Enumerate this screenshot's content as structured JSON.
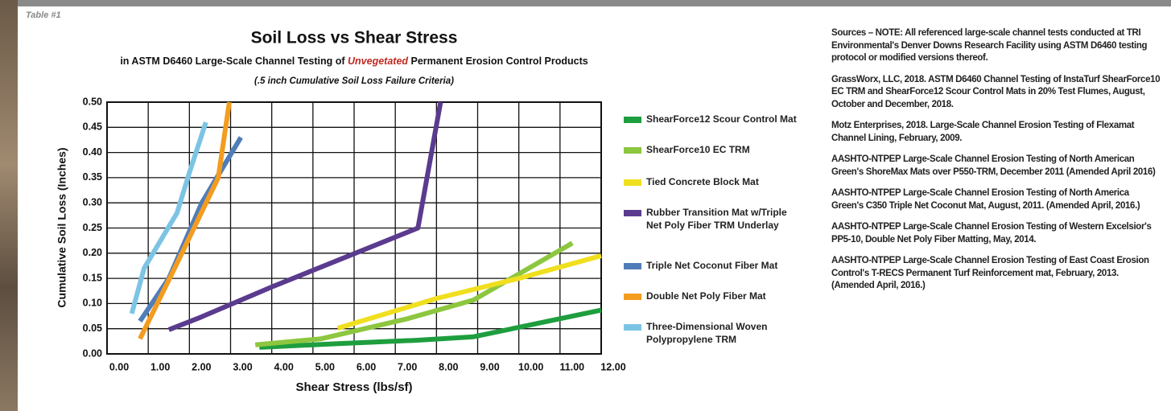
{
  "table_label": "Table #1",
  "chart_data": {
    "type": "line",
    "title": "Soil Loss vs Shear Stress",
    "subtitle": [
      "in ASTM D6460 Large-Scale Channel Testing of ",
      "Unvegetated",
      " Permanent Erosion Control Products"
    ],
    "note": "(.5 inch Cumulative Soil Loss Failure Criteria)",
    "xlabel": "Shear Stress (lbs/sf)",
    "ylabel": "Cumulative Soil Loss (Inches)",
    "xlim": [
      0,
      12
    ],
    "ylim": [
      0,
      0.5
    ],
    "xticks": [
      {
        "value": 0,
        "label": "0.00"
      },
      {
        "value": 1,
        "label": "1.00"
      },
      {
        "value": 2,
        "label": "2.00"
      },
      {
        "value": 3,
        "label": "3.00"
      },
      {
        "value": 4,
        "label": "4.00"
      },
      {
        "value": 5,
        "label": "5.00"
      },
      {
        "value": 6,
        "label": "6.00"
      },
      {
        "value": 7,
        "label": "7.00"
      },
      {
        "value": 8,
        "label": "8.00"
      },
      {
        "value": 9,
        "label": "9.00"
      },
      {
        "value": 10,
        "label": "10.00"
      },
      {
        "value": 11,
        "label": "11.00"
      },
      {
        "value": 12,
        "label": "12.00"
      }
    ],
    "yticks": [
      {
        "value": 0,
        "label": "0.00"
      },
      {
        "value": 0.05,
        "label": "0.05"
      },
      {
        "value": 0.1,
        "label": "0.10"
      },
      {
        "value": 0.15,
        "label": "0.15"
      },
      {
        "value": 0.2,
        "label": "0.20"
      },
      {
        "value": 0.25,
        "label": "0.25"
      },
      {
        "value": 0.3,
        "label": "0.30"
      },
      {
        "value": 0.35,
        "label": "0.35"
      },
      {
        "value": 0.4,
        "label": "0.40"
      },
      {
        "value": 0.45,
        "label": "0.45"
      },
      {
        "value": 0.5,
        "label": "0.50"
      }
    ],
    "grid": true,
    "series": [
      {
        "name": "ShearForce12 Scour Control Mat",
        "color": "#1e9e3e",
        "x": [
          3.7,
          5.5,
          7.5,
          8.9,
          12
        ],
        "values": [
          0.013,
          0.02,
          0.027,
          0.034,
          0.087
        ]
      },
      {
        "name": "ShearForce10 EC TRM",
        "color": "#8dc63f",
        "x": [
          3.6,
          5.2,
          7.3,
          8.9,
          11.3
        ],
        "values": [
          0.018,
          0.03,
          0.07,
          0.107,
          0.22
        ]
      },
      {
        "name": "Tied Concrete Block Mat",
        "color": "#f0df1e",
        "x": [
          5.6,
          8.0,
          10.0,
          12
        ],
        "values": [
          0.051,
          0.11,
          0.15,
          0.195
        ]
      },
      {
        "name": "Rubber Transition Mat w/Triple Net Poly Fiber TRM Underlay",
        "color": "#5a3b8e",
        "x": [
          1.5,
          2.25,
          4.0,
          7.55,
          8.1
        ],
        "values": [
          0.048,
          0.072,
          0.133,
          0.25,
          0.5
        ]
      },
      {
        "name": "Triple Net Coconut Fiber Mat",
        "color": "#4f7db8",
        "x": [
          0.8,
          1.5,
          2.3,
          3.25
        ],
        "values": [
          0.065,
          0.15,
          0.3,
          0.43
        ]
      },
      {
        "name": "Double Net Poly Fiber Mat",
        "color": "#f39c1f",
        "x": [
          0.8,
          1.7,
          2.7,
          2.97
        ],
        "values": [
          0.03,
          0.18,
          0.35,
          0.5
        ]
      },
      {
        "name": "Three-Dimensional Woven Polypropylene TRM",
        "color": "#7cc4e4",
        "x": [
          0.6,
          0.9,
          1.7,
          2.0,
          2.4
        ],
        "values": [
          0.08,
          0.17,
          0.28,
          0.36,
          0.46
        ]
      }
    ]
  },
  "sources": [
    "Sources – NOTE: All referenced large-scale channel tests conducted at TRI Environmental's Denver Downs Research Facility using ASTM D6460 testing protocol or modified versions thereof.",
    "GrassWorx, LLC, 2018. ASTM D6460 Channel Testing of InstaTurf ShearForce10 EC TRM and ShearForce12 Scour Control Mats in 20% Test Flumes, August, October and December, 2018.",
    "Motz Enterprises, 2018. Large-Scale Channel Erosion Testing of Flexamat Channel Lining, February, 2009.",
    "AASHTO-NTPEP Large-Scale Channel Erosion Testing of North American Green's ShoreMax Mats over P550-TRM, December 2011 (Amended April 2016)",
    "AASHTO-NTPEP Large-Scale Channel Erosion Testing of North America Green's C350 Triple Net Coconut Mat, August, 2011. (Amended April, 2016.)",
    "AASHTO-NTPEP Large-Scale Channel Erosion Testing of Western Excelsior's PP5-10, Double Net Poly Fiber Matting, May, 2014.",
    "AASHTO-NTPEP Large-Scale Channel Erosion Testing of East Coast Erosion Control's T-RECS Permanent Turf Reinforcement mat, February, 2013. (Amended April, 2016.)"
  ]
}
